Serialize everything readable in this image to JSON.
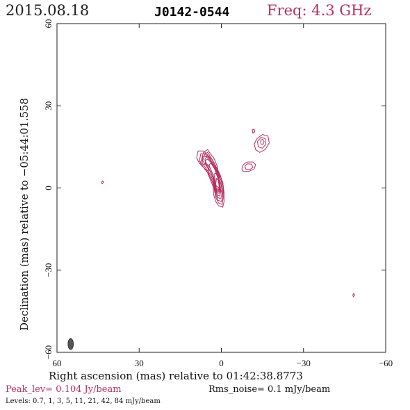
{
  "header": {
    "date": "2015.08.18",
    "source": "J0142-0544",
    "freq": "Freq: 4.3 GHz"
  },
  "chart_data": {
    "type": "contour",
    "xlabel": "Right ascension (mas) relative to 01:42:38.8773",
    "ylabel": "Declination (mas) relative to −05:44:01.558",
    "xlim": [
      60,
      -60
    ],
    "ylim": [
      -60,
      60
    ],
    "x_ticks": [
      "60",
      "30",
      "0",
      "−30",
      "−60"
    ],
    "y_ticks": [
      "−60",
      "−30",
      "0",
      "30",
      "60"
    ],
    "contour_color": "#b5305d",
    "beam_color": "#555555",
    "beam": {
      "x": 55,
      "y": -57,
      "major_mas": 4.0,
      "minor_mas": 2.0
    },
    "contours": [
      {
        "ring": [
          [
            0.0,
            -1.5
          ],
          [
            2.0,
            -1.0
          ],
          [
            3.0,
            1.5
          ],
          [
            4.5,
            5.0
          ],
          [
            5.0,
            8.0
          ],
          [
            6.0,
            9.0
          ],
          [
            7.0,
            8.0
          ],
          [
            7.5,
            9.5
          ],
          [
            6.5,
            13.0
          ],
          [
            5.0,
            14.0
          ],
          [
            4.0,
            12.5
          ],
          [
            2.8,
            11.0
          ],
          [
            1.5,
            8.0
          ],
          [
            1.0,
            5.0
          ],
          [
            1.0,
            2.0
          ],
          [
            0.5,
            0.0
          ]
        ]
      },
      {
        "ring": [
          [
            0.3,
            -1.0
          ],
          [
            2.0,
            0.0
          ],
          [
            2.8,
            3.0
          ],
          [
            4.0,
            6.0
          ],
          [
            5.0,
            8.0
          ],
          [
            6.0,
            8.5
          ],
          [
            6.8,
            10.0
          ],
          [
            6.0,
            12.5
          ],
          [
            5.0,
            13.0
          ],
          [
            4.0,
            11.5
          ],
          [
            2.5,
            9.0
          ],
          [
            1.5,
            6.0
          ],
          [
            1.0,
            3.0
          ]
        ]
      },
      {
        "ring": [
          [
            0.5,
            -0.5
          ],
          [
            2.0,
            1.0
          ],
          [
            2.5,
            3.0
          ],
          [
            3.5,
            6.0
          ],
          [
            4.5,
            8.0
          ],
          [
            5.5,
            9.0
          ],
          [
            6.0,
            10.5
          ],
          [
            5.0,
            12.0
          ],
          [
            4.0,
            10.5
          ],
          [
            2.5,
            8.0
          ],
          [
            1.5,
            5.0
          ],
          [
            1.0,
            2.0
          ]
        ]
      },
      {
        "ring": [
          [
            -0.5,
            -7.0
          ],
          [
            1.0,
            -6.5
          ],
          [
            2.0,
            -5.0
          ],
          [
            2.8,
            -2.5
          ],
          [
            3.0,
            0.5
          ],
          [
            4.0,
            3.0
          ],
          [
            5.0,
            5.5
          ],
          [
            6.5,
            7.5
          ],
          [
            8.0,
            9.0
          ],
          [
            9.0,
            11.0
          ],
          [
            8.5,
            13.5
          ],
          [
            6.5,
            13.5
          ],
          [
            5.0,
            12.0
          ],
          [
            3.5,
            10.5
          ],
          [
            2.0,
            8.0
          ],
          [
            0.5,
            5.0
          ],
          [
            -0.5,
            2.0
          ],
          [
            -1.0,
            -1.5
          ],
          [
            -1.0,
            -5.0
          ]
        ]
      },
      {
        "ring": [
          [
            -0.3,
            -6.0
          ],
          [
            1.0,
            -5.5
          ],
          [
            2.0,
            -3.5
          ],
          [
            2.5,
            -1.0
          ],
          [
            3.0,
            1.5
          ],
          [
            4.0,
            4.0
          ],
          [
            5.5,
            6.5
          ],
          [
            7.0,
            8.0
          ],
          [
            8.0,
            10.0
          ],
          [
            7.5,
            12.5
          ],
          [
            6.0,
            12.5
          ],
          [
            4.5,
            11.0
          ],
          [
            3.0,
            9.0
          ],
          [
            1.5,
            6.5
          ],
          [
            0.0,
            3.5
          ],
          [
            -0.7,
            0.5
          ],
          [
            -0.8,
            -3.0
          ]
        ]
      },
      {
        "ring": [
          [
            0.0,
            -5.0
          ],
          [
            1.2,
            -4.5
          ],
          [
            2.0,
            -2.5
          ],
          [
            2.5,
            0.0
          ],
          [
            3.0,
            2.5
          ],
          [
            4.0,
            5.0
          ],
          [
            5.5,
            7.0
          ],
          [
            7.0,
            9.0
          ],
          [
            6.8,
            11.5
          ],
          [
            5.5,
            11.5
          ],
          [
            4.0,
            10.0
          ],
          [
            2.5,
            8.0
          ],
          [
            1.2,
            5.5
          ],
          [
            0.0,
            2.5
          ],
          [
            -0.5,
            -0.5
          ],
          [
            -0.5,
            -3.5
          ]
        ]
      },
      {
        "ring": [
          [
            0.2,
            -4.0
          ],
          [
            1.3,
            -3.5
          ],
          [
            2.0,
            -1.5
          ],
          [
            2.5,
            1.0
          ],
          [
            3.0,
            3.5
          ],
          [
            4.0,
            6.0
          ],
          [
            5.5,
            8.0
          ],
          [
            6.0,
            10.0
          ],
          [
            5.0,
            10.5
          ],
          [
            3.5,
            9.0
          ],
          [
            2.0,
            6.5
          ],
          [
            0.8,
            4.0
          ],
          [
            0.0,
            1.0
          ],
          [
            -0.2,
            -2.0
          ]
        ]
      },
      {
        "ring": [
          [
            0.5,
            -3.0
          ],
          [
            1.5,
            -2.5
          ],
          [
            2.0,
            -0.5
          ],
          [
            2.5,
            2.0
          ],
          [
            3.0,
            4.5
          ],
          [
            3.8,
            6.5
          ],
          [
            4.5,
            8.5
          ],
          [
            3.8,
            9.0
          ],
          [
            2.5,
            7.0
          ],
          [
            1.5,
            4.5
          ],
          [
            0.5,
            2.0
          ],
          [
            0.2,
            -1.0
          ]
        ]
      },
      {
        "ring": [
          [
            0.8,
            -2.0
          ],
          [
            1.6,
            -1.5
          ],
          [
            2.0,
            0.5
          ],
          [
            2.3,
            3.0
          ],
          [
            2.7,
            5.0
          ],
          [
            2.0,
            5.5
          ],
          [
            1.2,
            3.5
          ],
          [
            0.6,
            1.0
          ]
        ]
      },
      {
        "ring": [
          [
            1.0,
            -1.0
          ],
          [
            1.8,
            -0.5
          ],
          [
            2.0,
            1.5
          ],
          [
            1.8,
            3.5
          ],
          [
            1.2,
            3.0
          ],
          [
            0.8,
            1.0
          ]
        ]
      },
      {
        "ring": [
          [
            -8.0,
            6.0
          ],
          [
            -10.0,
            6.0
          ],
          [
            -12.0,
            7.0
          ],
          [
            -12.5,
            8.5
          ],
          [
            -11.5,
            9.5
          ],
          [
            -9.5,
            9.5
          ],
          [
            -8.0,
            8.5
          ],
          [
            -7.5,
            7.0
          ]
        ]
      },
      {
        "ring": [
          [
            -9.0,
            6.8
          ],
          [
            -10.5,
            6.8
          ],
          [
            -11.5,
            7.5
          ],
          [
            -11.0,
            8.7
          ],
          [
            -9.5,
            8.8
          ],
          [
            -8.6,
            8.0
          ]
        ]
      },
      {
        "ring": [
          [
            -12.5,
            14.0
          ],
          [
            -14.0,
            13.0
          ],
          [
            -16.0,
            14.0
          ],
          [
            -17.5,
            16.5
          ],
          [
            -17.0,
            19.0
          ],
          [
            -15.0,
            19.5
          ],
          [
            -13.0,
            18.0
          ],
          [
            -12.0,
            16.0
          ]
        ]
      },
      {
        "ring": [
          [
            -13.5,
            15.0
          ],
          [
            -15.0,
            14.5
          ],
          [
            -16.3,
            16.0
          ],
          [
            -16.0,
            18.0
          ],
          [
            -14.5,
            18.5
          ],
          [
            -13.2,
            17.0
          ]
        ]
      },
      {
        "ring": [
          [
            -14.5,
            16.0
          ],
          [
            -15.3,
            16.0
          ],
          [
            -15.6,
            17.0
          ],
          [
            -15.0,
            17.8
          ],
          [
            -14.3,
            17.2
          ]
        ]
      },
      {
        "ring": [
          [
            -11.5,
            20.0
          ],
          [
            -12.2,
            20.5
          ],
          [
            -12.0,
            21.5
          ],
          [
            -11.3,
            21.2
          ]
        ]
      },
      {
        "ring": [
          [
            43.5,
            1.5
          ],
          [
            43.0,
            2.2
          ],
          [
            43.3,
            2.6
          ],
          [
            43.8,
            2.0
          ]
        ]
      },
      {
        "ring": [
          [
            -48.2,
            -39.8
          ],
          [
            -48.6,
            -39.2
          ],
          [
            -48.4,
            -38.4
          ],
          [
            -48.0,
            -39.0
          ]
        ]
      }
    ]
  },
  "footer": {
    "peak": "Peak_lev=  0.104 Jy/beam",
    "rms": "Rms_noise=  0.1 mJy/beam",
    "levels": "Levels: 0.7,   1,   3,   5,  11,  21,  42,  84 mJy/beam"
  }
}
